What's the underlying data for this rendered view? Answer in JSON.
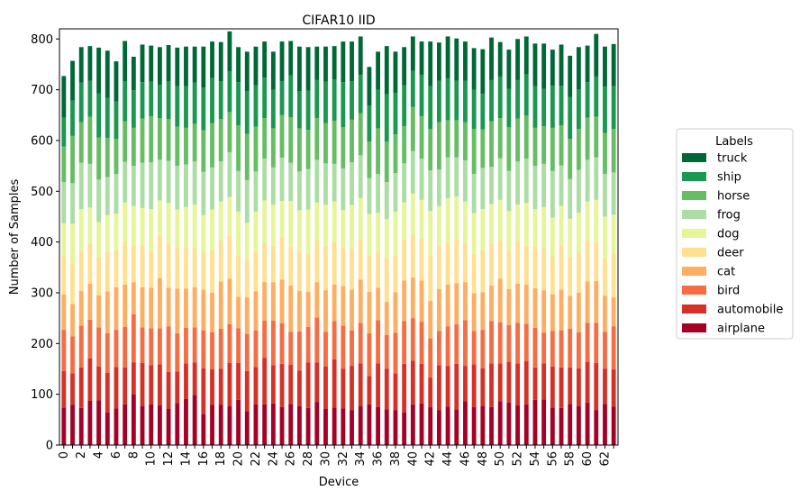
{
  "chart_data": {
    "type": "bar",
    "stacked": true,
    "title": "CIFAR10 IID",
    "xlabel": "Device",
    "ylabel": "Number of Samples",
    "ylim": [
      0,
      820
    ],
    "yticks": [
      0,
      100,
      200,
      300,
      400,
      500,
      600,
      700,
      800
    ],
    "grid": false,
    "legend": {
      "title": "Labels",
      "placement": "right"
    },
    "categories": [
      "0",
      "1",
      "2",
      "3",
      "4",
      "5",
      "6",
      "7",
      "8",
      "9",
      "10",
      "11",
      "12",
      "13",
      "14",
      "15",
      "16",
      "17",
      "18",
      "19",
      "20",
      "21",
      "22",
      "23",
      "24",
      "25",
      "26",
      "27",
      "28",
      "29",
      "30",
      "31",
      "32",
      "33",
      "34",
      "35",
      "36",
      "37",
      "38",
      "39",
      "40",
      "41",
      "42",
      "43",
      "44",
      "45",
      "46",
      "47",
      "48",
      "49",
      "50",
      "51",
      "52",
      "53",
      "54",
      "55",
      "56",
      "57",
      "58",
      "59",
      "60",
      "61",
      "62",
      "63"
    ],
    "xtick_labels": [
      "0",
      "2",
      "4",
      "6",
      "8",
      "10",
      "12",
      "14",
      "16",
      "18",
      "20",
      "22",
      "24",
      "26",
      "28",
      "30",
      "32",
      "34",
      "36",
      "38",
      "40",
      "42",
      "44",
      "46",
      "48",
      "50",
      "52",
      "54",
      "56",
      "58",
      "60",
      "62"
    ],
    "series": [
      {
        "name": "airplane",
        "color": "#a50026",
        "values": [
          74,
          79,
          73,
          87,
          88,
          64,
          72,
          80,
          100,
          77,
          80,
          78,
          71,
          83,
          91,
          99,
          61,
          79,
          79,
          77,
          89,
          67,
          80,
          80,
          82,
          75,
          81,
          77,
          73,
          85,
          71,
          74,
          72,
          69,
          77,
          80,
          75,
          70,
          69,
          64,
          80,
          82,
          75,
          69,
          76,
          70,
          86,
          75,
          77,
          75,
          86,
          84,
          78,
          80,
          89,
          90,
          74,
          73,
          81,
          77,
          84,
          69,
          81,
          76
        ]
      },
      {
        "name": "automobile",
        "color": "#d73027",
        "values": [
          72,
          62,
          80,
          84,
          67,
          78,
          82,
          73,
          63,
          85,
          77,
          81,
          73,
          62,
          70,
          64,
          90,
          70,
          71,
          85,
          73,
          79,
          74,
          92,
          75,
          85,
          77,
          70,
          90,
          78,
          84,
          95,
          78,
          87,
          84,
          56,
          86,
          80,
          72,
          96,
          86,
          78,
          58,
          88,
          80,
          90,
          70,
          84,
          74,
          86,
          75,
          80,
          83,
          85,
          64,
          71,
          81,
          80,
          72,
          74,
          80,
          93,
          69,
          73
        ]
      },
      {
        "name": "bird",
        "color": "#f46d43",
        "values": [
          81,
          73,
          82,
          76,
          77,
          78,
          73,
          80,
          95,
          70,
          73,
          71,
          90,
          75,
          70,
          69,
          75,
          73,
          79,
          76,
          68,
          73,
          72,
          73,
          88,
          80,
          65,
          77,
          70,
          88,
          68,
          75,
          85,
          70,
          80,
          84,
          85,
          67,
          80,
          84,
          84,
          83,
          77,
          68,
          78,
          78,
          90,
          66,
          76,
          83,
          81,
          72,
          80,
          74,
          78,
          60,
          70,
          73,
          76,
          71,
          77,
          79,
          73,
          85
        ]
      },
      {
        "name": "cat",
        "color": "#fdae61",
        "values": [
          70,
          64,
          69,
          71,
          63,
          83,
          84,
          83,
          63,
          79,
          80,
          99,
          76,
          88,
          77,
          79,
          80,
          78,
          93,
          90,
          62,
          72,
          77,
          76,
          76,
          86,
          91,
          80,
          69,
          70,
          82,
          72,
          78,
          80,
          85,
          82,
          64,
          65,
          80,
          80,
          80,
          81,
          74,
          82,
          82,
          81,
          75,
          74,
          74,
          70,
          86,
          71,
          77,
          77,
          78,
          84,
          72,
          80,
          65,
          78,
          81,
          82,
          71,
          57
        ]
      },
      {
        "name": "deer",
        "color": "#fee090",
        "values": [
          74,
          79,
          79,
          79,
          75,
          78,
          73,
          85,
          72,
          82,
          70,
          82,
          88,
          80,
          81,
          77,
          73,
          84,
          81,
          84,
          81,
          73,
          77,
          77,
          70,
          83,
          77,
          75,
          75,
          83,
          86,
          84,
          77,
          80,
          77,
          71,
          69,
          86,
          72,
          80,
          86,
          83,
          90,
          85,
          83,
          87,
          77,
          77,
          84,
          83,
          75,
          77,
          84,
          76,
          82,
          82,
          74,
          86,
          76,
          79,
          80,
          76,
          73,
          86
        ]
      },
      {
        "name": "dog",
        "color": "#e6f598",
        "values": [
          66,
          79,
          82,
          71,
          69,
          72,
          72,
          77,
          78,
          74,
          85,
          71,
          79,
          76,
          80,
          86,
          74,
          80,
          77,
          77,
          87,
          74,
          80,
          84,
          83,
          72,
          90,
          84,
          87,
          74,
          83,
          80,
          73,
          87,
          84,
          82,
          79,
          77,
          87,
          74,
          80,
          76,
          87,
          79,
          87,
          84,
          82,
          81,
          80,
          78,
          80,
          77,
          72,
          85,
          74,
          82,
          77,
          79,
          76,
          79,
          78,
          84,
          83,
          77
        ]
      },
      {
        "name": "frog",
        "color": "#abdda4",
        "values": [
          81,
          80,
          91,
          86,
          84,
          75,
          78,
          80,
          79,
          89,
          92,
          80,
          83,
          86,
          84,
          85,
          85,
          83,
          79,
          88,
          80,
          84,
          79,
          82,
          73,
          85,
          75,
          76,
          80,
          84,
          81,
          74,
          82,
          84,
          84,
          71,
          76,
          73,
          76,
          77,
          83,
          81,
          80,
          72,
          81,
          77,
          81,
          77,
          81,
          73,
          82,
          79,
          85,
          87,
          85,
          85,
          92,
          80,
          78,
          84,
          82,
          84,
          84,
          83
        ]
      },
      {
        "name": "horse",
        "color": "#66bd63",
        "values": [
          70,
          93,
          80,
          93,
          83,
          77,
          69,
          80,
          75,
          87,
          91,
          82,
          82,
          77,
          72,
          74,
          82,
          87,
          83,
          79,
          90,
          91,
          88,
          80,
          77,
          84,
          90,
          85,
          77,
          82,
          79,
          85,
          81,
          84,
          83,
          72,
          90,
          80,
          76,
          73,
          87,
          84,
          82,
          93,
          73,
          73,
          75,
          89,
          76,
          90,
          79,
          86,
          84,
          85,
          75,
          74,
          85,
          79,
          79,
          81,
          83,
          80,
          81,
          86
        ]
      },
      {
        "name": "ship",
        "color": "#1a9850",
        "values": [
          57,
          70,
          78,
          71,
          87,
          79,
          74,
          79,
          74,
          72,
          68,
          66,
          75,
          80,
          82,
          81,
          84,
          89,
          75,
          80,
          85,
          84,
          82,
          80,
          76,
          67,
          82,
          73,
          77,
          75,
          82,
          81,
          89,
          76,
          75,
          71,
          76,
          93,
          82,
          81,
          71,
          81,
          84,
          82,
          82,
          78,
          82,
          77,
          70,
          81,
          82,
          76,
          76,
          81,
          82,
          74,
          83,
          78,
          83,
          78,
          70,
          79,
          91,
          84
        ]
      },
      {
        "name": "truck",
        "color": "#006837",
        "values": [
          82,
          78,
          70,
          68,
          90,
          93,
          79,
          79,
          66,
          74,
          71,
          74,
          71,
          76,
          78,
          71,
          81,
          72,
          77,
          79,
          69,
          78,
          76,
          71,
          75,
          78,
          68,
          88,
          86,
          66,
          69,
          66,
          80,
          78,
          76,
          76,
          75,
          95,
          81,
          75,
          68,
          66,
          88,
          75,
          83,
          83,
          77,
          82,
          88,
          84,
          68,
          77,
          81,
          75,
          84,
          89,
          71,
          81,
          81,
          83,
          72,
          84,
          79,
          83
        ]
      }
    ]
  }
}
